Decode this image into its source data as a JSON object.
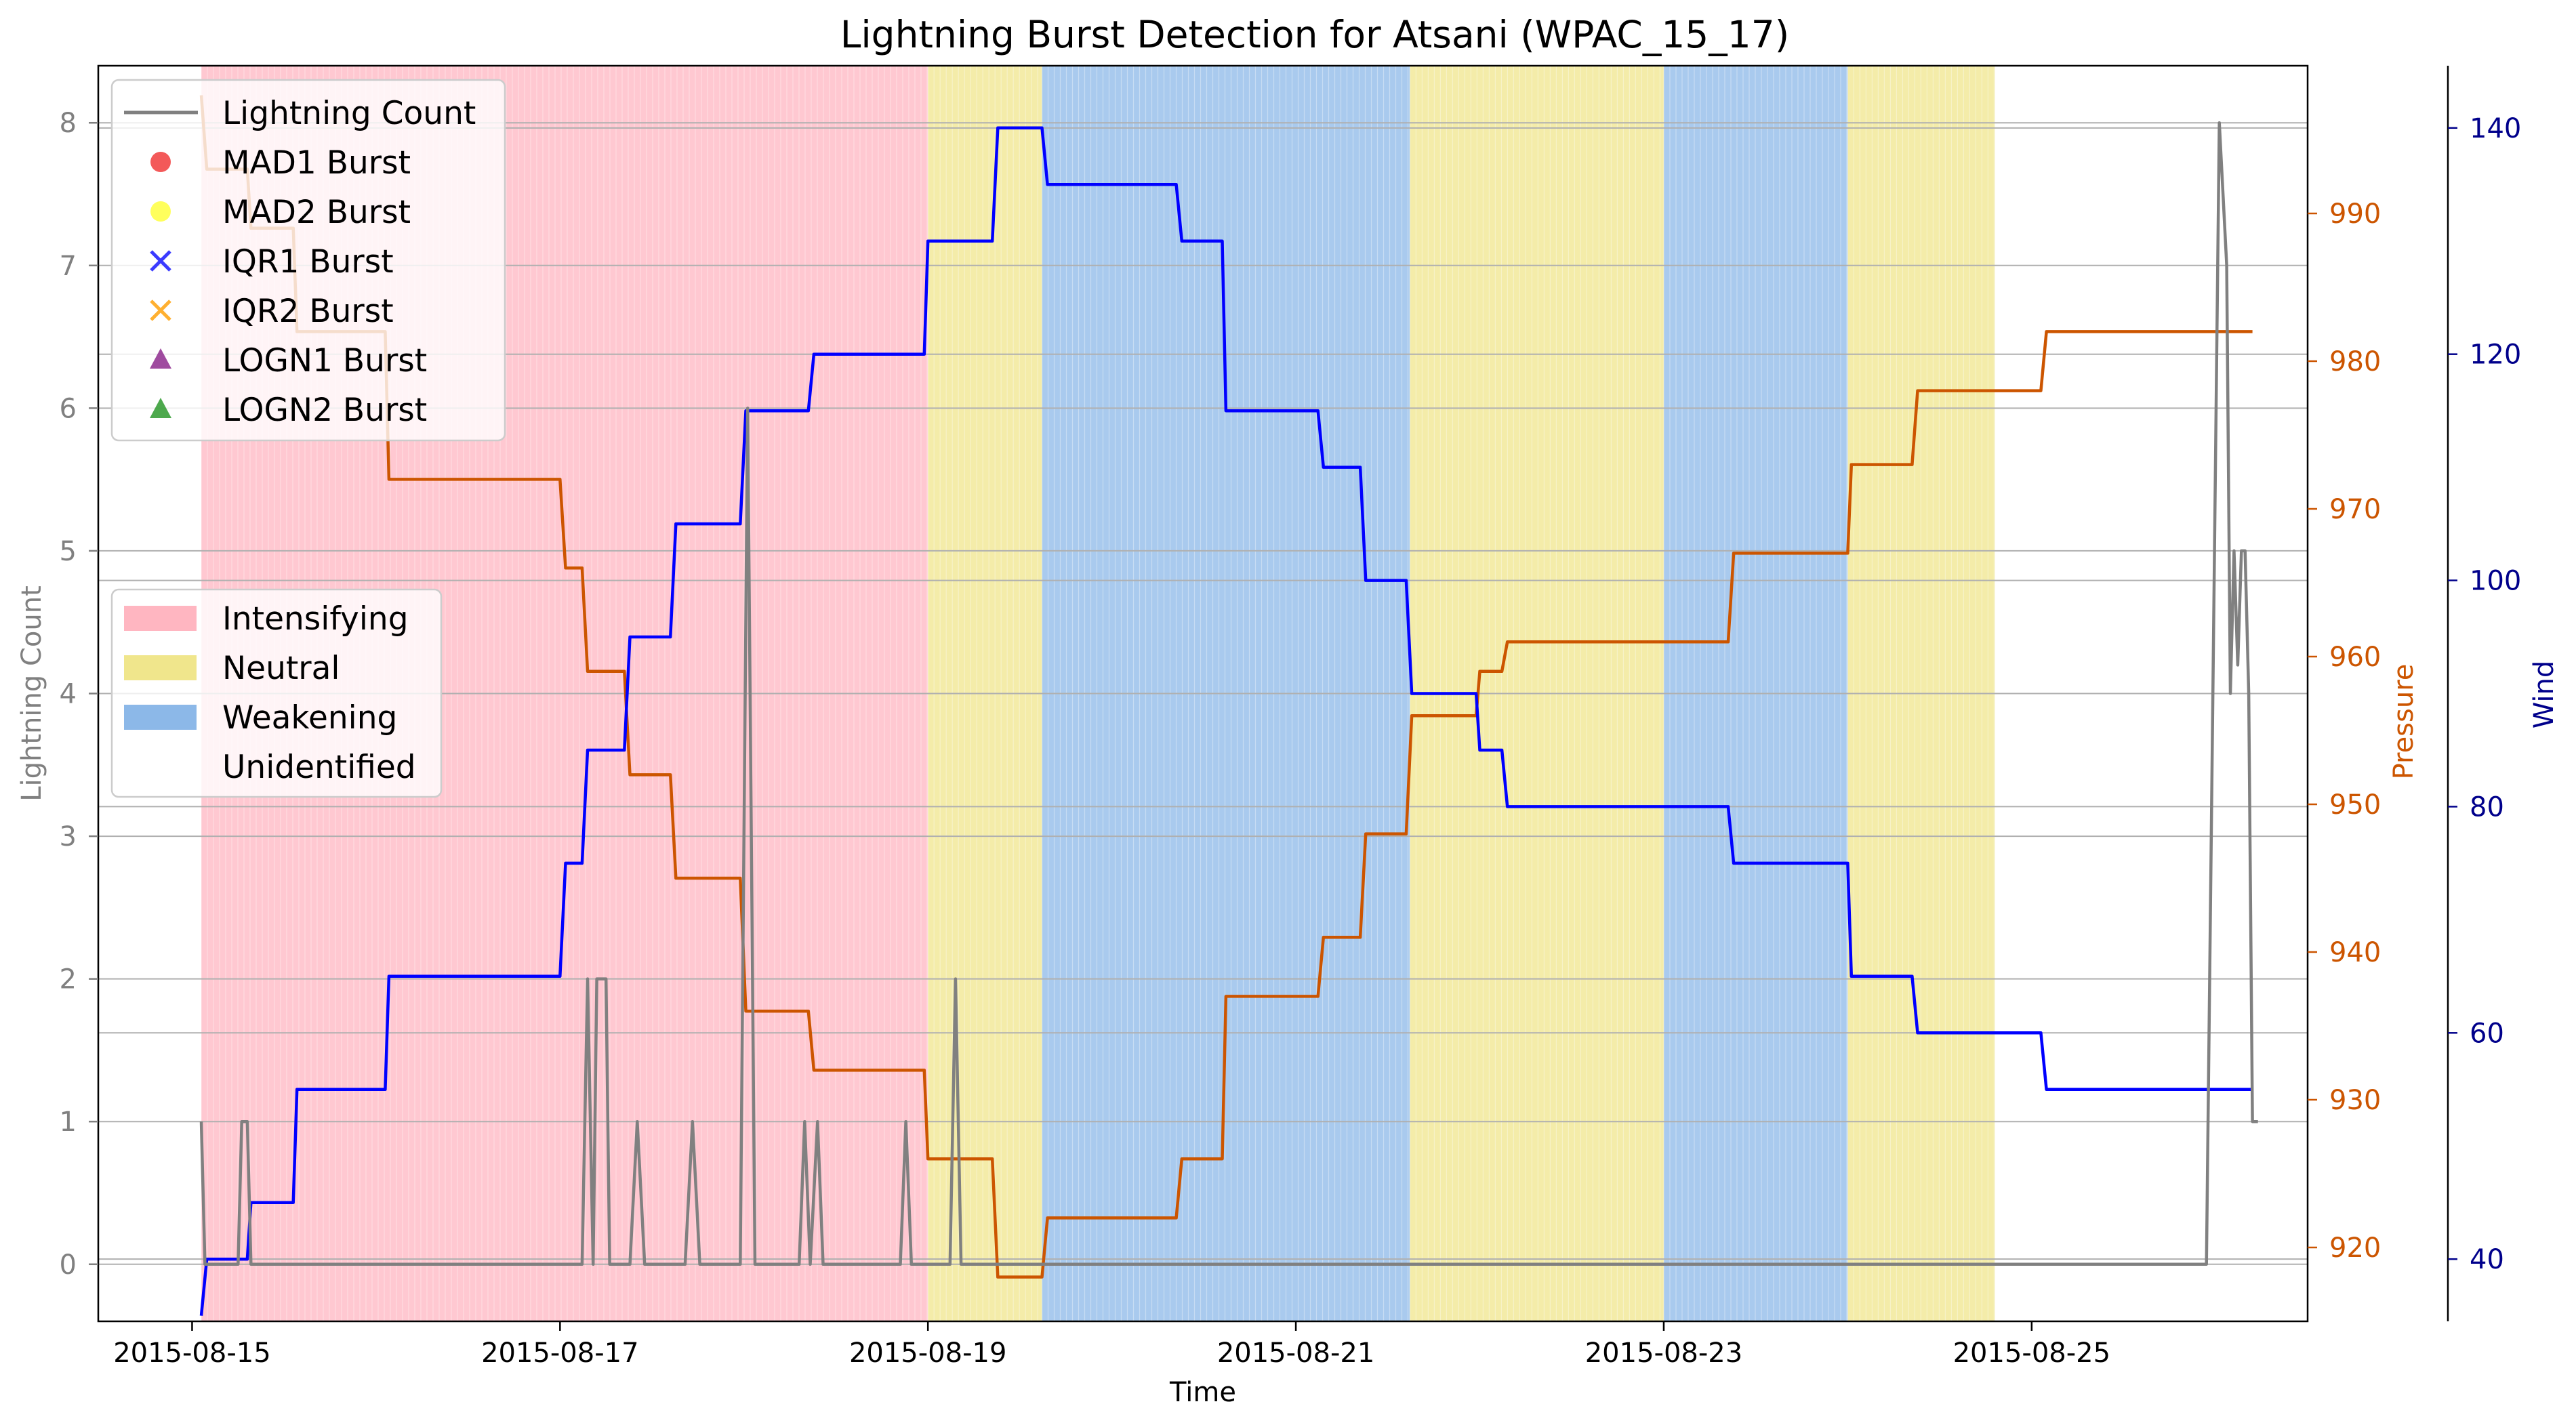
{
  "chart_data": {
    "type": "line",
    "title": "Lightning Burst Detection for Atsani (WPAC_15_17)",
    "xlabel": "Time",
    "ylabel_left": "Lightning Count",
    "ylabel_right1": "Pressure",
    "ylabel_right2": "Wind",
    "x_range_days": [
      -0.51,
      11.5
    ],
    "x_ticks": [
      {
        "day": 0,
        "label": "2015-08-15"
      },
      {
        "day": 2,
        "label": "2015-08-17"
      },
      {
        "day": 4,
        "label": "2015-08-19"
      },
      {
        "day": 6,
        "label": "2015-08-21"
      },
      {
        "day": 8,
        "label": "2015-08-23"
      },
      {
        "day": 10,
        "label": "2015-08-25"
      }
    ],
    "left_axis": {
      "range": [
        -0.4,
        8.4
      ],
      "ticks": [
        0,
        1,
        2,
        3,
        4,
        5,
        6,
        7,
        8
      ],
      "color": "#808080"
    },
    "pressure_axis": {
      "range": [
        915,
        1000
      ],
      "ticks": [
        920,
        930,
        940,
        950,
        960,
        970,
        980,
        990
      ],
      "color": "#cc5500"
    },
    "wind_axis": {
      "range": [
        34.5,
        145.5
      ],
      "ticks": [
        40,
        60,
        80,
        100,
        120,
        140
      ],
      "color": "#00008b"
    },
    "phases": [
      {
        "name": "Intensifying",
        "start": 0.05,
        "end": 4.0,
        "color": "#ffb6c1"
      },
      {
        "name": "Neutral",
        "start": 4.0,
        "end": 4.62,
        "color": "#f0e68c"
      },
      {
        "name": "Weakening",
        "start": 4.62,
        "end": 6.62,
        "color": "#8cb8e8"
      },
      {
        "name": "Neutral",
        "start": 6.62,
        "end": 8.0,
        "color": "#f0e68c"
      },
      {
        "name": "Weakening",
        "start": 8.0,
        "end": 9.0,
        "color": "#8cb8e8"
      },
      {
        "name": "Neutral",
        "start": 9.0,
        "end": 9.8,
        "color": "#f0e68c"
      }
    ],
    "series": [
      {
        "name": "Lightning Count",
        "color": "#808080",
        "x": [
          0.05,
          0.07,
          0.1,
          0.25,
          0.27,
          0.3,
          0.32,
          0.35,
          2.12,
          2.15,
          2.18,
          2.2,
          2.23,
          2.25,
          2.27,
          2.3,
          2.32,
          2.38,
          2.42,
          2.46,
          2.68,
          2.72,
          2.76,
          2.98,
          3.02,
          3.06,
          3.1,
          3.3,
          3.33,
          3.36,
          3.4,
          3.43,
          3.46,
          3.85,
          3.88,
          3.91,
          4.12,
          4.15,
          4.18,
          10.95,
          11.02,
          11.06,
          11.08,
          11.1,
          11.12,
          11.14,
          11.16,
          11.18,
          11.2,
          11.23
        ],
        "y": [
          1,
          0,
          0,
          0,
          1,
          1,
          0,
          0,
          0,
          2,
          0,
          2,
          2,
          2,
          0,
          0,
          0,
          0,
          1,
          0,
          0,
          1,
          0,
          0,
          6,
          0,
          0,
          0,
          1,
          0,
          1,
          0,
          0,
          0,
          1,
          0,
          0,
          2,
          0,
          0,
          8,
          7,
          4,
          5,
          4.2,
          5,
          5,
          4,
          1,
          1
        ]
      },
      {
        "name": "Pressure",
        "color": "#cc5500",
        "x": [
          0.05,
          0.08,
          0.3,
          0.32,
          0.55,
          0.57,
          1.05,
          1.07,
          2.0,
          2.03,
          2.12,
          2.15,
          2.35,
          2.38,
          2.6,
          2.63,
          2.98,
          3.01,
          3.35,
          3.38,
          3.98,
          4.0,
          4.35,
          4.38,
          4.62,
          4.65,
          5.35,
          5.38,
          5.6,
          5.62,
          6.12,
          6.15,
          6.35,
          6.38,
          6.6,
          6.63,
          6.98,
          7.0,
          7.12,
          7.15,
          8.35,
          8.38,
          9.0,
          9.02,
          9.35,
          9.38,
          10.05,
          10.08,
          11.2
        ],
        "y": [
          998,
          993,
          993,
          989,
          989,
          982,
          982,
          972,
          972,
          966,
          966,
          959,
          959,
          952,
          952,
          945,
          945,
          936,
          936,
          932,
          932,
          926,
          926,
          918,
          918,
          922,
          922,
          926,
          926,
          937,
          937,
          941,
          941,
          948,
          948,
          956,
          956,
          959,
          959,
          961,
          961,
          967,
          967,
          973,
          973,
          978,
          978,
          982,
          982
        ]
      },
      {
        "name": "Wind",
        "color": "#0000ff",
        "x": [
          0.05,
          0.08,
          0.3,
          0.32,
          0.55,
          0.57,
          1.05,
          1.07,
          2.0,
          2.03,
          2.12,
          2.15,
          2.35,
          2.38,
          2.6,
          2.63,
          2.98,
          3.01,
          3.35,
          3.38,
          3.98,
          4.0,
          4.35,
          4.38,
          4.62,
          4.65,
          5.35,
          5.38,
          5.6,
          5.62,
          6.12,
          6.15,
          6.35,
          6.38,
          6.6,
          6.63,
          6.98,
          7.0,
          7.12,
          7.15,
          8.35,
          8.38,
          9.0,
          9.02,
          9.35,
          9.38,
          10.05,
          10.08,
          11.2
        ],
        "y": [
          35,
          40,
          40,
          45,
          45,
          55,
          55,
          65,
          65,
          75,
          75,
          85,
          85,
          95,
          95,
          105,
          105,
          115,
          115,
          120,
          120,
          130,
          130,
          140,
          140,
          135,
          135,
          130,
          130,
          115,
          115,
          110,
          110,
          100,
          100,
          90,
          90,
          85,
          85,
          80,
          80,
          75,
          75,
          65,
          65,
          60,
          60,
          55,
          55
        ]
      }
    ],
    "legend_markers": [
      {
        "label": "Lightning Count",
        "type": "line",
        "color": "#808080"
      },
      {
        "label": "MAD1 Burst",
        "type": "circle",
        "color": "#f03030"
      },
      {
        "label": "MAD2 Burst",
        "type": "circle",
        "color": "#ffff33"
      },
      {
        "label": "IQR1 Burst",
        "type": "x",
        "color": "#3a3aff"
      },
      {
        "label": "IQR2 Burst",
        "type": "x",
        "color": "#ffb030"
      },
      {
        "label": "LOGN1 Burst",
        "type": "triangle",
        "color": "#8e2b8e"
      },
      {
        "label": "LOGN2 Burst",
        "type": "triangle",
        "color": "#2e9a2e"
      }
    ],
    "legend_phases": [
      {
        "label": "Intensifying",
        "color": "#ffb6c1"
      },
      {
        "label": "Neutral",
        "color": "#f0e68c"
      },
      {
        "label": "Weakening",
        "color": "#8cb8e8"
      },
      {
        "label": "Unidentified",
        "color": "#ffffff"
      }
    ]
  }
}
